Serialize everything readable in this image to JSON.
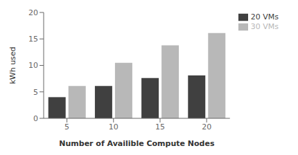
{
  "chart_data": {
    "type": "bar",
    "xlabel": "Number of Availible Compute Nodes",
    "ylabel": "kWh used",
    "categories": [
      "5",
      "10",
      "15",
      "20"
    ],
    "series": [
      {
        "name": "20 VMs",
        "color": "#404040",
        "values": [
          4.0,
          6.1,
          7.6,
          8.1
        ]
      },
      {
        "name": "30 VMs",
        "color": "#b8b8b8",
        "values": [
          6.1,
          10.5,
          13.8,
          16.1
        ]
      }
    ],
    "ylim": [
      0,
      20
    ],
    "yticks": [
      0,
      5,
      10,
      15,
      20
    ],
    "grid": false,
    "legend": "right"
  }
}
